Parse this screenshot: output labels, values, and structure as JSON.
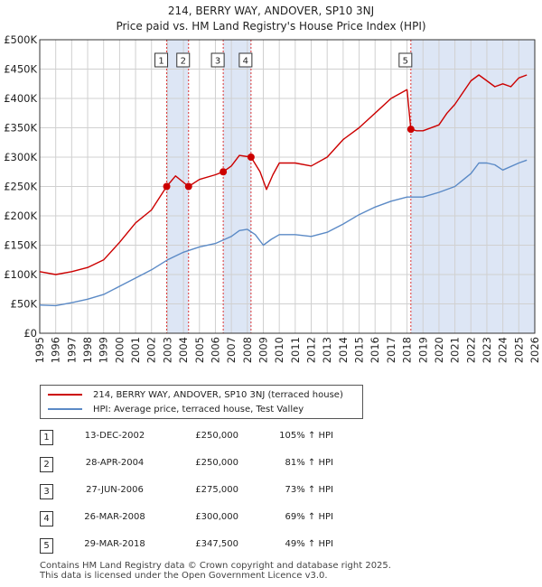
{
  "header": {
    "title": "214, BERRY WAY, ANDOVER, SP10 3NJ",
    "subtitle": "Price paid vs. HM Land Registry's House Price Index (HPI)"
  },
  "chart_data": {
    "type": "line",
    "title": "214, BERRY WAY, ANDOVER, SP10 3NJ",
    "subtitle": "Price paid vs. HM Land Registry's House Price Index (HPI)",
    "xlabel": "",
    "ylabel": "",
    "xlim": [
      1995,
      2026
    ],
    "ylim": [
      0,
      500000
    ],
    "x_ticks": [
      "1995",
      "1996",
      "1997",
      "1998",
      "1999",
      "2000",
      "2001",
      "2002",
      "2003",
      "2004",
      "2005",
      "2006",
      "2007",
      "2008",
      "2009",
      "2010",
      "2011",
      "2012",
      "2013",
      "2014",
      "2015",
      "2016",
      "2017",
      "2018",
      "2019",
      "2020",
      "2021",
      "2022",
      "2023",
      "2024",
      "2025",
      "2026"
    ],
    "y_ticks": [
      {
        "value": 0,
        "label": "£0"
      },
      {
        "value": 50000,
        "label": "£50K"
      },
      {
        "value": 100000,
        "label": "£100K"
      },
      {
        "value": 150000,
        "label": "£150K"
      },
      {
        "value": 200000,
        "label": "£200K"
      },
      {
        "value": 250000,
        "label": "£250K"
      },
      {
        "value": 300000,
        "label": "£300K"
      },
      {
        "value": 350000,
        "label": "£350K"
      },
      {
        "value": 400000,
        "label": "£400K"
      },
      {
        "value": 450000,
        "label": "£450K"
      },
      {
        "value": 500000,
        "label": "£500K"
      }
    ],
    "grid": true,
    "series": [
      {
        "name": "214, BERRY WAY, ANDOVER, SP10 3NJ (terraced house)",
        "color": "#cc0000",
        "x": [
          1995,
          1996,
          1997,
          1998,
          1999,
          2000,
          2001,
          2002,
          2002.95,
          2003.5,
          2004.32,
          2005,
          2006,
          2006.49,
          2007,
          2007.5,
          2008.23,
          2008.8,
          2009.2,
          2009.6,
          2010,
          2011,
          2012,
          2013,
          2014,
          2015,
          2016,
          2017,
          2018.0,
          2018.24,
          2018.6,
          2019,
          2020,
          2020.5,
          2021,
          2022,
          2022.5,
          2023,
          2023.5,
          2024,
          2024.5,
          2025,
          2025.5
        ],
        "values": [
          105000,
          100000,
          105000,
          112000,
          125000,
          155000,
          188000,
          210000,
          250000,
          268000,
          250000,
          262000,
          270000,
          275000,
          285000,
          303000,
          300000,
          275000,
          245000,
          270000,
          290000,
          290000,
          285000,
          300000,
          330000,
          350000,
          375000,
          400000,
          415000,
          347500,
          345000,
          345000,
          355000,
          375000,
          390000,
          430000,
          440000,
          430000,
          420000,
          425000,
          420000,
          435000,
          440000
        ]
      },
      {
        "name": "HPI: Average price, terraced house, Test Valley",
        "color": "#5b8ac6",
        "x": [
          1995,
          1996,
          1997,
          1998,
          1999,
          2000,
          2001,
          2002,
          2003,
          2004,
          2005,
          2006,
          2007,
          2007.5,
          2008,
          2008.5,
          2009,
          2009.5,
          2010,
          2011,
          2012,
          2013,
          2014,
          2015,
          2016,
          2017,
          2018,
          2019,
          2020,
          2021,
          2022,
          2022.5,
          2023,
          2023.5,
          2024,
          2025,
          2025.5
        ],
        "values": [
          48000,
          47000,
          52000,
          58000,
          66000,
          80000,
          94000,
          108000,
          125000,
          138000,
          147000,
          153000,
          165000,
          175000,
          177000,
          168000,
          150000,
          160000,
          168000,
          168000,
          165000,
          172000,
          186000,
          202000,
          215000,
          225000,
          232000,
          232000,
          240000,
          250000,
          272000,
          290000,
          290000,
          287000,
          278000,
          290000,
          295000
        ]
      }
    ],
    "sales": [
      {
        "num": "1",
        "date": "13-DEC-2002",
        "price": "£250,000",
        "hpi": "105% ↑ HPI",
        "x": 2002.95,
        "value": 250000
      },
      {
        "num": "2",
        "date": "28-APR-2004",
        "price": "£250,000",
        "hpi": "81% ↑ HPI",
        "x": 2004.32,
        "value": 250000
      },
      {
        "num": "3",
        "date": "27-JUN-2006",
        "price": "£275,000",
        "hpi": "73% ↑ HPI",
        "x": 2006.49,
        "value": 275000
      },
      {
        "num": "4",
        "date": "26-MAR-2008",
        "price": "£300,000",
        "hpi": "69% ↑ HPI",
        "x": 2008.23,
        "value": 300000
      },
      {
        "num": "5",
        "date": "29-MAR-2018",
        "price": "£347,500",
        "hpi": "49% ↑ HPI",
        "x": 2018.24,
        "value": 347500
      }
    ],
    "shaded_periods": [
      [
        2002.95,
        2004.32
      ],
      [
        2006.49,
        2008.23
      ],
      [
        2018.24,
        2026
      ]
    ],
    "colors": {
      "price": "#cc0000",
      "hpi": "#5b8ac6",
      "shade": "#dde6f5",
      "grid": "#d0d0d0"
    }
  },
  "legend": {
    "price_label": "214, BERRY WAY, ANDOVER, SP10 3NJ (terraced house)",
    "hpi_label": "HPI: Average price, terraced house, Test Valley"
  },
  "footer": {
    "line1": "Contains HM Land Registry data © Crown copyright and database right 2025.",
    "line2": "This data is licensed under the Open Government Licence v3.0."
  }
}
